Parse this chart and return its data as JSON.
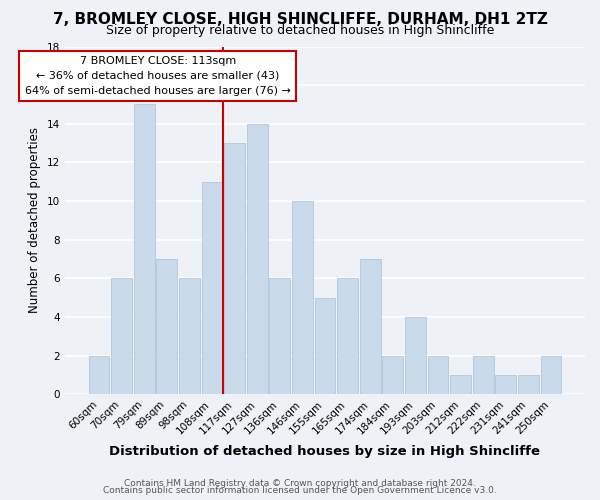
{
  "title": "7, BROMLEY CLOSE, HIGH SHINCLIFFE, DURHAM, DH1 2TZ",
  "subtitle": "Size of property relative to detached houses in High Shincliffe",
  "xlabel": "Distribution of detached houses by size in High Shincliffe",
  "ylabel": "Number of detached properties",
  "bin_labels": [
    "60sqm",
    "70sqm",
    "79sqm",
    "89sqm",
    "98sqm",
    "108sqm",
    "117sqm",
    "127sqm",
    "136sqm",
    "146sqm",
    "155sqm",
    "165sqm",
    "174sqm",
    "184sqm",
    "193sqm",
    "203sqm",
    "212sqm",
    "222sqm",
    "231sqm",
    "241sqm",
    "250sqm"
  ],
  "bar_values": [
    2,
    6,
    15,
    7,
    6,
    11,
    13,
    14,
    6,
    10,
    5,
    6,
    7,
    2,
    4,
    2,
    1,
    2,
    1,
    1,
    2
  ],
  "bar_color": "#c9daea",
  "bar_edge_color": "#a8c0d8",
  "highlight_color": "#cc0000",
  "annotation_text": "7 BROMLEY CLOSE: 113sqm\n← 36% of detached houses are smaller (43)\n64% of semi-detached houses are larger (76) →",
  "annotation_box_color": "#ffffff",
  "annotation_box_edge": "#cc0000",
  "ylim": [
    0,
    18
  ],
  "yticks": [
    0,
    2,
    4,
    6,
    8,
    10,
    12,
    14,
    16,
    18
  ],
  "footer1": "Contains HM Land Registry data © Crown copyright and database right 2024.",
  "footer2": "Contains public sector information licensed under the Open Government Licence v3.0.",
  "background_color": "#eef2f7",
  "grid_color": "#ffffff",
  "title_fontsize": 11,
  "subtitle_fontsize": 9,
  "xlabel_fontsize": 9.5,
  "ylabel_fontsize": 8.5,
  "tick_fontsize": 7.5,
  "annotation_fontsize": 8,
  "footer_fontsize": 6.5
}
